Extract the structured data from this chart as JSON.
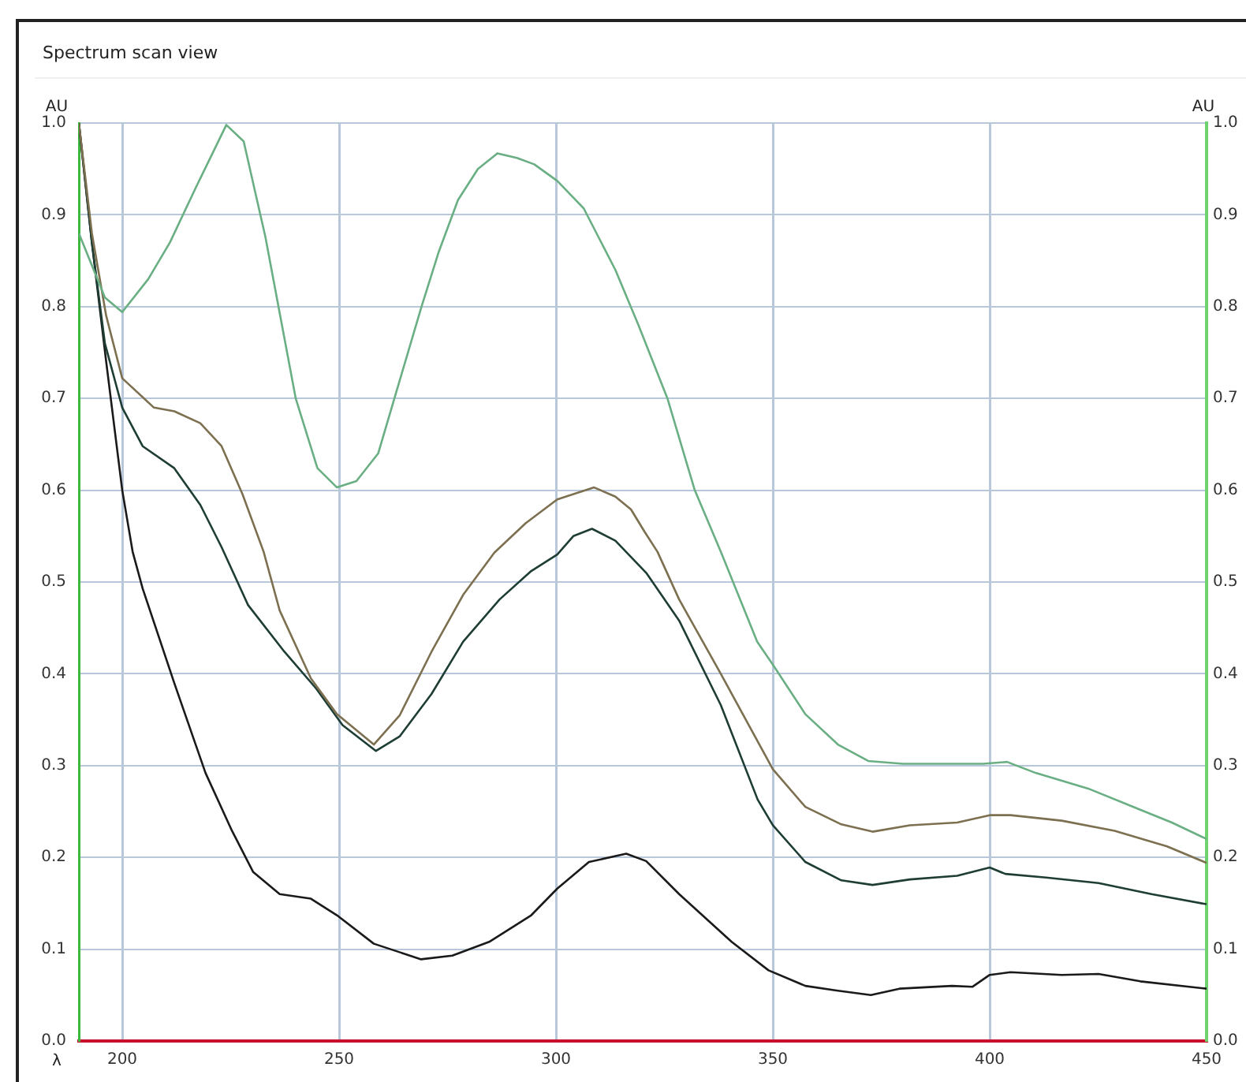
{
  "chart_data": {
    "type": "line",
    "title": "Spectrum scan view",
    "xlabel": "λ",
    "ylabel": "AU",
    "y2label": "AU",
    "xlim": [
      190,
      450
    ],
    "xticks": [
      200,
      250,
      300,
      350,
      400,
      450
    ],
    "ylim": [
      0,
      1
    ],
    "yticks": [
      {
        "value": 0,
        "label": "0.0"
      },
      {
        "value": 0.1,
        "label": "0.1"
      },
      {
        "value": 0.2,
        "label": "0.2"
      },
      {
        "value": 0.3,
        "label": "0.3"
      },
      {
        "value": 0.4,
        "label": "0.4"
      },
      {
        "value": 0.5,
        "label": "0.5"
      },
      {
        "value": 0.6,
        "label": "0.6"
      },
      {
        "value": 0.7,
        "label": "0.7"
      },
      {
        "value": 0.8,
        "label": "0.8"
      },
      {
        "value": 0.9,
        "label": "0.9"
      },
      {
        "value": 1,
        "label": "1.0"
      }
    ],
    "y2lim": [
      0,
      1
    ],
    "y2ticks": [
      {
        "value": 0,
        "label": "0.0"
      },
      {
        "value": 0.1,
        "label": "0.1"
      },
      {
        "value": 0.2,
        "label": "0.2"
      },
      {
        "value": 0.3,
        "label": "0.3"
      },
      {
        "value": 0.4,
        "label": "0.4"
      },
      {
        "value": 0.5,
        "label": "0.5"
      },
      {
        "value": 0.6,
        "label": "0.6"
      },
      {
        "value": 0.7,
        "label": "0.7"
      },
      {
        "value": 0.8,
        "label": "0.8"
      },
      {
        "value": 0.9,
        "label": "0.9"
      },
      {
        "value": 1,
        "label": "1.0"
      }
    ],
    "grid": true,
    "marker": "none",
    "line_style": "solid",
    "series": [
      {
        "color": "#6aaf83",
        "x": [
          190,
          196,
          200,
          206,
          211,
          217,
          224,
          228,
          233,
          240,
          245,
          249.5,
          254,
          259,
          264,
          269,
          273,
          277.4,
          282,
          286.5,
          291,
          295,
          300.3,
          306.4,
          313.7,
          319,
          325.7,
          332,
          338,
          346.4,
          350,
          357.5,
          365,
          372,
          380,
          390,
          398.5,
          404,
          410.6,
          422.7,
          434.7,
          442,
          450
        ],
        "values": [
          0.88,
          0.81,
          0.794,
          0.83,
          0.87,
          0.93,
          0.998,
          0.98,
          0.876,
          0.7,
          0.624,
          0.603,
          0.61,
          0.64,
          0.72,
          0.8,
          0.86,
          0.916,
          0.95,
          0.967,
          0.962,
          0.955,
          0.937,
          0.907,
          0.84,
          0.78,
          0.7,
          0.6,
          0.533,
          0.435,
          0.41,
          0.356,
          0.323,
          0.305,
          0.302,
          0.302,
          0.302,
          0.304,
          0.292,
          0.275,
          0.252,
          0.238,
          0.22
        ]
      },
      {
        "color": "#7d7050",
        "x": [
          190,
          193,
          196.3,
          200,
          207.3,
          212,
          218,
          222.9,
          227.7,
          232.6,
          236.3,
          243.5,
          249.5,
          258,
          264,
          271.3,
          278.6,
          285.8,
          293,
          300.3,
          308.8,
          313.7,
          317.3,
          320.4,
          323.4,
          328.4,
          338,
          350,
          357.5,
          365.8,
          373,
          381.6,
          392.5,
          400,
          404.8,
          416.6,
          428.8,
          440.9,
          450
        ],
        "values": [
          1,
          0.88,
          0.79,
          0.722,
          0.69,
          0.686,
          0.673,
          0.648,
          0.596,
          0.533,
          0.469,
          0.395,
          0.356,
          0.323,
          0.355,
          0.424,
          0.486,
          0.532,
          0.564,
          0.59,
          0.603,
          0.593,
          0.579,
          0.555,
          0.533,
          0.481,
          0.4,
          0.296,
          0.255,
          0.236,
          0.228,
          0.235,
          0.238,
          0.246,
          0.246,
          0.24,
          0.229,
          0.212,
          0.194
        ]
      },
      {
        "color": "#1d3d35",
        "x": [
          190,
          193,
          196,
          200,
          204.7,
          212,
          218,
          222.9,
          229,
          237.4,
          244.7,
          250.8,
          258.5,
          264,
          271.3,
          278.6,
          287,
          294.3,
          300.3,
          304,
          308.3,
          313.7,
          320.8,
          328.4,
          338,
          346.5,
          350,
          357.5,
          365.8,
          373,
          381.6,
          392.5,
          400,
          403.6,
          413,
          425.1,
          437.3,
          450
        ],
        "values": [
          1,
          0.87,
          0.76,
          0.69,
          0.648,
          0.624,
          0.584,
          0.538,
          0.475,
          0.424,
          0.384,
          0.344,
          0.316,
          0.332,
          0.378,
          0.435,
          0.481,
          0.512,
          0.53,
          0.55,
          0.558,
          0.545,
          0.51,
          0.458,
          0.366,
          0.263,
          0.235,
          0.195,
          0.175,
          0.17,
          0.176,
          0.18,
          0.189,
          0.182,
          0.178,
          0.172,
          0.16,
          0.149
        ]
      },
      {
        "color": "#1a1a1a",
        "x": [
          190,
          193,
          196.3,
          200,
          202.4,
          204.7,
          212,
          219.2,
          225.3,
          230.2,
          236.3,
          243.5,
          249.5,
          258,
          268.9,
          276.1,
          284.6,
          294.3,
          300.3,
          307.6,
          316.2,
          320.8,
          328.4,
          340.5,
          349,
          357.5,
          364.7,
          372.6,
          379.2,
          391.3,
          396,
          400,
          404.8,
          416.6,
          425.1,
          434.7,
          450
        ],
        "values": [
          1,
          0.87,
          0.74,
          0.6,
          0.533,
          0.493,
          0.39,
          0.292,
          0.229,
          0.184,
          0.16,
          0.155,
          0.137,
          0.106,
          0.089,
          0.093,
          0.108,
          0.137,
          0.166,
          0.195,
          0.204,
          0.196,
          0.16,
          0.108,
          0.077,
          0.06,
          0.055,
          0.05,
          0.057,
          0.06,
          0.059,
          0.072,
          0.075,
          0.072,
          0.073,
          0.065,
          0.057
        ]
      }
    ]
  }
}
